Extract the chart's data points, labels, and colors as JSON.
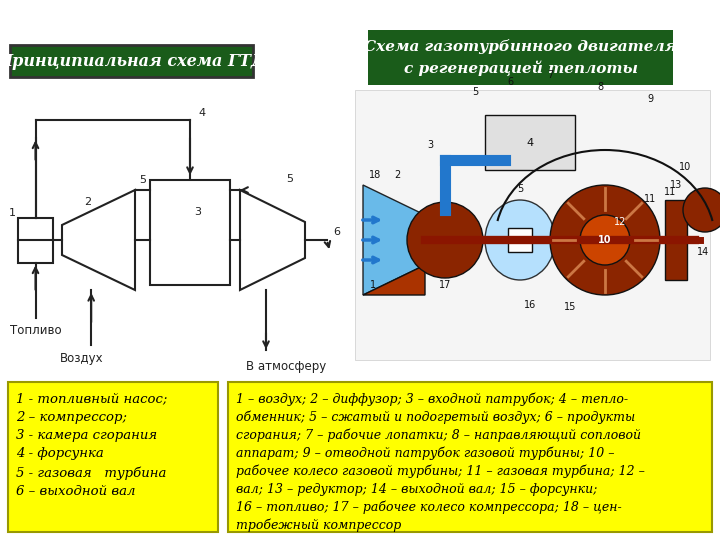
{
  "bg_color": "#ffffff",
  "title1_text": "Принципиальная схема ГТД",
  "title1_bg": "#1a5c1a",
  "title1_text_color": "#ffffff",
  "title2_text": "Схема газотурбинного двигателя\nс регенерацией теплоты",
  "title2_bg": "#1a5c1a",
  "title2_text_color": "#ffffff",
  "box1_bg": "#ffff00",
  "box1_border": "#999900",
  "box1_text": "1 - топливный насос;\n2 – компрессор;\n3 - камера сгорания\n4 - форсунка\n5 - газовая   турбина\n6 – выходной вал",
  "box2_bg": "#ffff00",
  "box2_border": "#999900",
  "box2_text": "1 – воздух; 2 – диффузор; 3 – входной патрубок; 4 – тепло-\nобменник; 5 – сжатый и подогретый воздух; 6 – продукты\nсгорания; 7 – рабочие лопатки; 8 – направляющий сопловой\nаппарат; 9 – отводной патрубок газовой турбины; 10 –\nрабочее колесо газовой турбины; 11 – газовая турбина; 12 –\nвал; 13 – редуктор; 14 – выходной вал; 15 – форсунки;\n16 – топливо; 17 – рабочее колесо компрессора; 18 – цен-\nтробежный компрессор",
  "diagram1_label_toplivo": "Топливо",
  "diagram1_label_vozduh": "Воздух",
  "diagram1_label_atmosfera": "В атмосферу"
}
